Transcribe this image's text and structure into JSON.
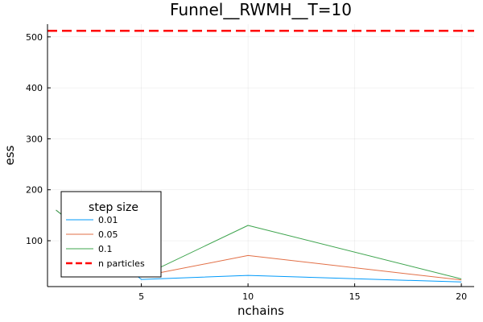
{
  "chart_data": {
    "type": "line",
    "title": "Funnel__RWMH__T=10",
    "xlabel": "nchains",
    "ylabel": "ess",
    "xlim": [
      0.6,
      20.6
    ],
    "ylim": [
      10,
      525
    ],
    "xticks": [
      5,
      10,
      15,
      20
    ],
    "yticks": [
      100,
      200,
      300,
      400,
      500
    ],
    "grid": true,
    "legend": {
      "title": "step size",
      "placement": "bottom-left"
    },
    "x": [
      1,
      5,
      10,
      20
    ],
    "series": [
      {
        "name": "0.01",
        "color": "#009AFA",
        "values": [
          160,
          24,
          32,
          19
        ]
      },
      {
        "name": "0.05",
        "color": "#E26F46",
        "values": [
          160,
          30,
          71,
          23
        ]
      },
      {
        "name": "0.1",
        "color": "#3DA44D",
        "values": [
          160,
          30,
          130,
          25
        ]
      }
    ],
    "hline": {
      "name": "n particles",
      "color": "#FF0000",
      "value": 512,
      "style": "dashed"
    }
  }
}
